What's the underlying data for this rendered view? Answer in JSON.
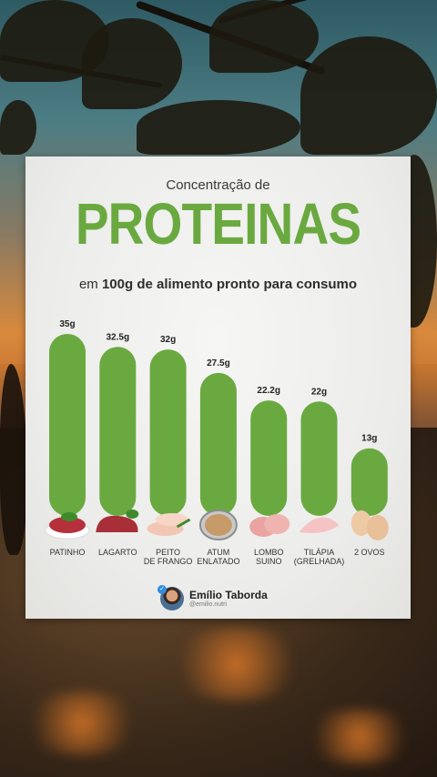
{
  "card": {
    "title_top": "Concentração de",
    "title_main": "PROTEINAS",
    "subtitle_prefix": "em ",
    "subtitle_bold": "100g de alimento pronto para consumo",
    "accent_color": "#6aa940"
  },
  "author": {
    "name": "Emílio Taborda",
    "handle": "@emilio.nutri"
  },
  "chart_data": {
    "type": "bar",
    "categories": [
      "PATINHO",
      "LAGARTO",
      "PEITO\nDE FRANGO",
      "ATUM\nENLATADO",
      "LOMBO\nSUINO",
      "TILÁPIA\n(GRELHADA)",
      "2 OVOS"
    ],
    "values": [
      35,
      32.5,
      32,
      27.5,
      22.2,
      22,
      13
    ],
    "value_labels": [
      "35g",
      "32.5g",
      "32g",
      "27.5g",
      "22.2g",
      "22g",
      "13g"
    ],
    "bar_color": "#6aa940",
    "food_icons": [
      "ground-beef-icon",
      "beef-cut-icon",
      "chicken-breast-icon",
      "canned-tuna-icon",
      "pork-loin-icon",
      "tilapia-fillet-icon",
      "eggs-icon"
    ]
  }
}
